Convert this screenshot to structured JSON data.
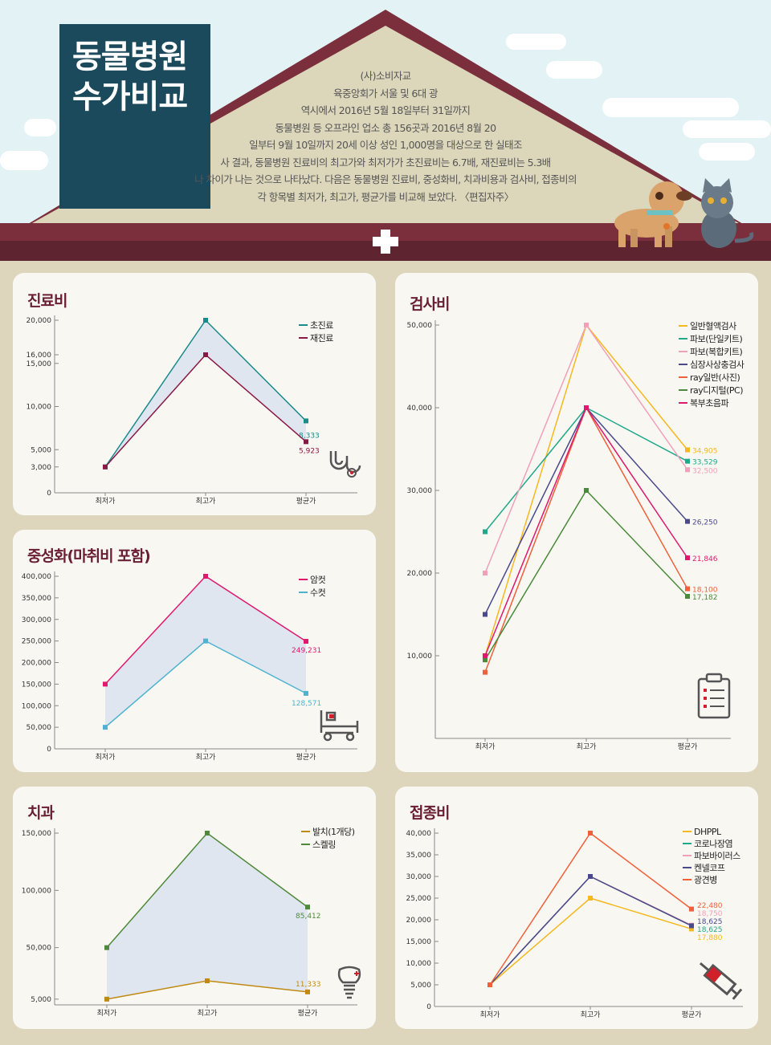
{
  "header": {
    "title_line1": "동물병원",
    "title_line2": "수가비교",
    "intro": [
      "(사)소비자교",
      "육중앙회가 서울 및 6대 광",
      "역시에서 2016년 5월 18일부터 31일까지",
      "동물병원 등 오프라인 업소 총 156곳과 2016년 8월 20",
      "일부터 9월 10일까지 20세 이상 성인 1,000명을 대상으로 한 실태조",
      "사 결과, 동물병원 진료비의 최고가와 최저가가 초진료비는 6.7배, 재진료비는 5.3배",
      "나 차이가 나는 것으로 나타났다. 다음은 동물병원 진료비, 중성화비, 치과비용과 검사비, 접종비의",
      "각 항목별 최저가, 최고가, 평균가를 비교해 보았다. 〈편집자주〉"
    ],
    "colors": {
      "roof": "#7b2f3c",
      "wall": "#dcd6bb",
      "title_bg": "#1c4a5d",
      "sky": "#e3f2f4"
    }
  },
  "chart_data": [
    {
      "id": "c1",
      "title": "진료비",
      "type": "line",
      "categories": [
        "최저가",
        "최고가",
        "평균가"
      ],
      "yticks": [
        0,
        3000,
        5000,
        10000,
        15000,
        16000,
        20000
      ],
      "ylim": [
        0,
        20000
      ],
      "fill_between": true,
      "icon": "stethoscope-icon",
      "series": [
        {
          "name": "초진료",
          "values": [
            3000,
            20000,
            8333
          ],
          "color": "#1a8a8a",
          "label": "8,333"
        },
        {
          "name": "재진료",
          "values": [
            3000,
            16000,
            5923
          ],
          "color": "#8a1a45",
          "label": "5,923"
        }
      ]
    },
    {
      "id": "c2",
      "title": "중성화(마취비 포함)",
      "type": "line",
      "categories": [
        "최저가",
        "최고가",
        "평균가"
      ],
      "yticks": [
        0,
        50000,
        100000,
        150000,
        200000,
        250000,
        300000,
        350000,
        400000
      ],
      "ylim": [
        0,
        400000
      ],
      "fill_between": true,
      "icon": "hospital-bed-icon",
      "series": [
        {
          "name": "암컷",
          "values": [
            150000,
            400000,
            249231
          ],
          "color": "#e0196e",
          "label": "249,231"
        },
        {
          "name": "수컷",
          "values": [
            50000,
            250000,
            128571
          ],
          "color": "#4fb3cf",
          "label": "128,571"
        }
      ]
    },
    {
      "id": "c3",
      "title": "치과",
      "type": "line",
      "categories": [
        "최저가",
        "최고가",
        "평균가"
      ],
      "yticks": [
        5000,
        50000,
        100000,
        150000
      ],
      "ylim": [
        0,
        150000
      ],
      "fill_between": true,
      "icon": "tooth-implant-icon",
      "series": [
        {
          "name": "발치(1개당)",
          "values": [
            5000,
            21000,
            11333
          ],
          "color": "#c08a12",
          "label": "11,333"
        },
        {
          "name": "스켈링",
          "values": [
            50000,
            150000,
            85412
          ],
          "color": "#4e8a3a",
          "label": "85,412"
        }
      ]
    },
    {
      "id": "c4",
      "title": "검사비",
      "type": "line",
      "categories": [
        "최저가",
        "최고가",
        "평균가"
      ],
      "yticks": [
        10000,
        20000,
        30000,
        40000,
        50000
      ],
      "ylim": [
        0,
        50000
      ],
      "fill_between": false,
      "icon": "clipboard-icon",
      "series": [
        {
          "name": "일반혈액검사",
          "values": [
            10000,
            50000,
            34905
          ],
          "color": "#f5b820",
          "label": "34,905"
        },
        {
          "name": "파보(단일키트)",
          "values": [
            25000,
            40000,
            33529
          ],
          "color": "#20a88a",
          "label": "33,529"
        },
        {
          "name": "파보(복합키트)",
          "values": [
            20000,
            50000,
            32500
          ],
          "color": "#f0a0b8",
          "label": "32,500"
        },
        {
          "name": "심장사상충검사",
          "values": [
            15000,
            40000,
            26250
          ],
          "color": "#4a4a8a",
          "label": "26,250"
        },
        {
          "name": "ray일반(사진)",
          "values": [
            8000,
            40000,
            18100
          ],
          "color": "#f0603a",
          "label": "18,100"
        },
        {
          "name": "ray디지털(PC)",
          "values": [
            9500,
            30000,
            17182
          ],
          "color": "#4a8a3a",
          "label": "17,182"
        },
        {
          "name": "복부초음파",
          "values": [
            10000,
            40000,
            21846
          ],
          "color": "#e0196e",
          "label": "21,846"
        }
      ]
    },
    {
      "id": "c5",
      "title": "접종비",
      "type": "line",
      "categories": [
        "최저가",
        "최고가",
        "평균가"
      ],
      "yticks": [
        0,
        5000,
        10000,
        15000,
        20000,
        25000,
        30000,
        35000,
        40000
      ],
      "ylim": [
        0,
        40000
      ],
      "fill_between": false,
      "icon": "syringe-icon",
      "series": [
        {
          "name": "DHPPL",
          "values": [
            5000,
            25000,
            17880
          ],
          "color": "#f5b820",
          "label": "17,880"
        },
        {
          "name": "코로나장염",
          "values": [
            5000,
            30000,
            18625
          ],
          "color": "#20a88a",
          "label": "18,625"
        },
        {
          "name": "파보바이러스",
          "values": [
            5000,
            30000,
            18750
          ],
          "color": "#f0a0b8",
          "label": "18,750"
        },
        {
          "name": "켄넬코프",
          "values": [
            5000,
            30000,
            18625
          ],
          "color": "#4a4a8a",
          "label": "18,625"
        },
        {
          "name": "광견병",
          "values": [
            5000,
            40000,
            22480
          ],
          "color": "#f0603a",
          "label": "22,480"
        }
      ]
    }
  ]
}
